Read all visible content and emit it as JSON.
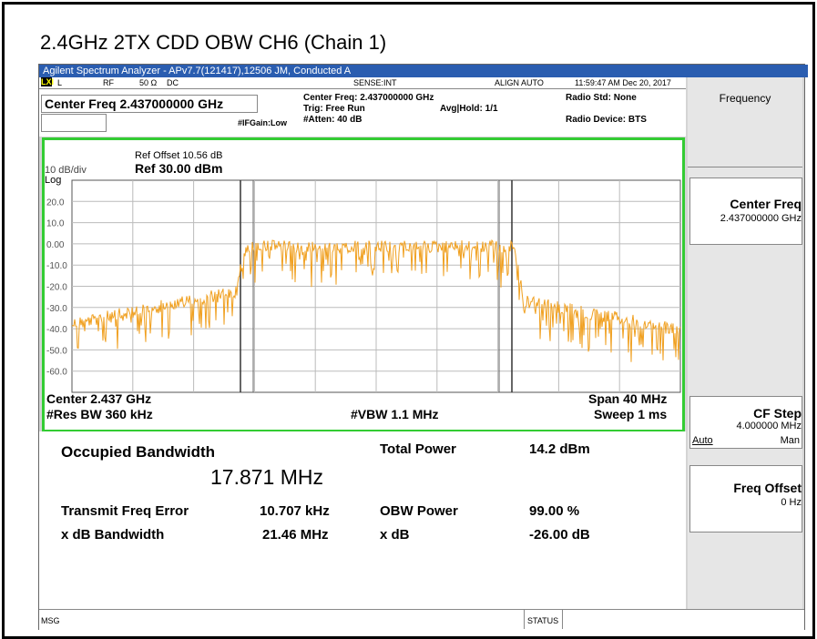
{
  "title": "2.4GHz 2TX CDD OBW CH6 (Chain 1)",
  "window_title": "Agilent Spectrum Analyzer - APv7.7(121417),12506 JM, Conducted A",
  "status_row": {
    "mode": "L",
    "rf": "RF",
    "impedance": "50 Ω",
    "coupling": "DC",
    "sense": "SENSE:INT",
    "align": "ALIGN AUTO",
    "datetime": "11:59:47 AM Dec 20, 2017"
  },
  "header": {
    "center_freq_box": "Center Freq 2.437000000 GHz",
    "center_freq": "Center Freq: 2.437000000 GHz",
    "trig": "Trig: Free Run",
    "avg_hold": "Avg|Hold: 1/1",
    "ifgain": "#IFGain:Low",
    "atten": "#Atten: 40 dB",
    "radio_std": "Radio Std: None",
    "radio_device": "Radio Device: BTS"
  },
  "plot": {
    "ref_offset": "Ref Offset 10.56 dB",
    "scale": "10 dB/div",
    "ref_level": "Ref 30.00 dBm",
    "log": "Log",
    "y_labels": [
      "20.0",
      "10.0",
      "0.00",
      "-10.0",
      "-20.0",
      "-30.0",
      "-40.0",
      "-50.0",
      "-60.0"
    ],
    "center": "Center 2.437 GHz",
    "res_bw": "#Res BW 360 kHz",
    "vbw": "#VBW 1.1 MHz",
    "span": "Span 40 MHz",
    "sweep": "Sweep 1 ms"
  },
  "results": {
    "occupied_bw_label": "Occupied Bandwidth",
    "occupied_bw_value": "17.871 MHz",
    "total_power_label": "Total Power",
    "total_power_value": "14.2 dBm",
    "freq_error_label": "Transmit Freq Error",
    "freq_error_value": "10.707 kHz",
    "obw_power_label": "OBW Power",
    "obw_power_value": "99.00 %",
    "xdb_bw_label": "x dB Bandwidth",
    "xdb_bw_value": "21.46 MHz",
    "xdb_label": "x dB",
    "xdb_value": "-26.00 dB"
  },
  "softkeys": {
    "menu": "Frequency",
    "center_freq": {
      "label": "Center Freq",
      "value": "2.437000000 GHz"
    },
    "cf_step": {
      "label": "CF Step",
      "value": "4.000000 MHz",
      "auto": "Auto",
      "man": "Man"
    },
    "freq_offset": {
      "label": "Freq Offset",
      "value": "0 Hz"
    }
  },
  "statusbar": {
    "msg": "MSG",
    "status": "STATUS"
  }
}
